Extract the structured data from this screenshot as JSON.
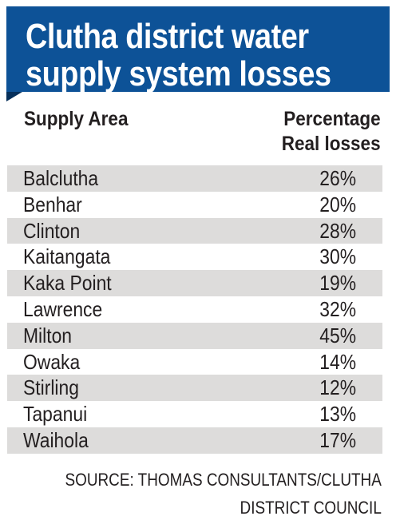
{
  "title_lines": [
    "Clutha district water",
    "supply system losses"
  ],
  "colors": {
    "title_bg": "#0d5297",
    "row_shade": "#dddcdb",
    "text": "#231f20"
  },
  "header": {
    "area": "Supply Area",
    "pct_line1": "Percentage",
    "pct_line2": "Real losses"
  },
  "chart_data": {
    "type": "table",
    "columns": [
      "Supply Area",
      "Percentage Real losses"
    ],
    "rows": [
      {
        "area": "Balclutha",
        "value": "26%"
      },
      {
        "area": "Benhar",
        "value": "20%"
      },
      {
        "area": "Clinton",
        "value": "28%"
      },
      {
        "area": "Kaitangata",
        "value": "30%"
      },
      {
        "area": "Kaka Point",
        "value": "19%"
      },
      {
        "area": "Lawrence",
        "value": "32%"
      },
      {
        "area": "Milton",
        "value": "45%"
      },
      {
        "area": "Owaka",
        "value": "14%"
      },
      {
        "area": "Stirling",
        "value": "12%"
      },
      {
        "area": "Tapanui",
        "value": "13%"
      },
      {
        "area": "Waihola",
        "value": "17%"
      }
    ]
  },
  "source_lines": [
    "SOURCE: THOMAS CONSULTANTS/CLUTHA",
    "DISTRICT COUNCIL"
  ]
}
